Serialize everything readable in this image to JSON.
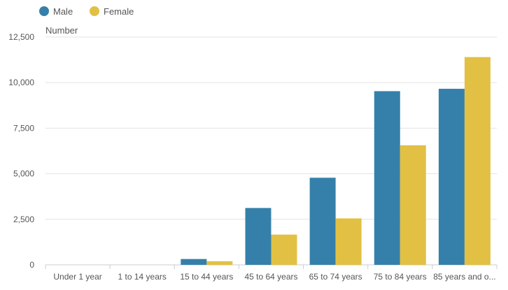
{
  "chart_data": {
    "type": "bar",
    "title": "",
    "xlabel": "",
    "ylabel": "Number",
    "ylim": [
      0,
      12500
    ],
    "yticks": [
      0,
      2500,
      5000,
      7500,
      10000,
      12500
    ],
    "ytick_labels": [
      "0",
      "2,500",
      "5,000",
      "7,500",
      "10,000",
      "12,500"
    ],
    "grid": true,
    "legend_position": "top-left",
    "categories": [
      "Under 1 year",
      "1 to 14 years",
      "15 to 44 years",
      "45 to 64 years",
      "65 to 74 years",
      "75 to 84 years",
      "85 years and o..."
    ],
    "series": [
      {
        "name": "Male",
        "color": "#3580aa",
        "values": [
          0,
          0,
          320,
          3120,
          4780,
          9530,
          9660
        ]
      },
      {
        "name": "Female",
        "color": "#e2c044",
        "values": [
          0,
          0,
          200,
          1660,
          2550,
          6560,
          11400
        ]
      }
    ]
  }
}
